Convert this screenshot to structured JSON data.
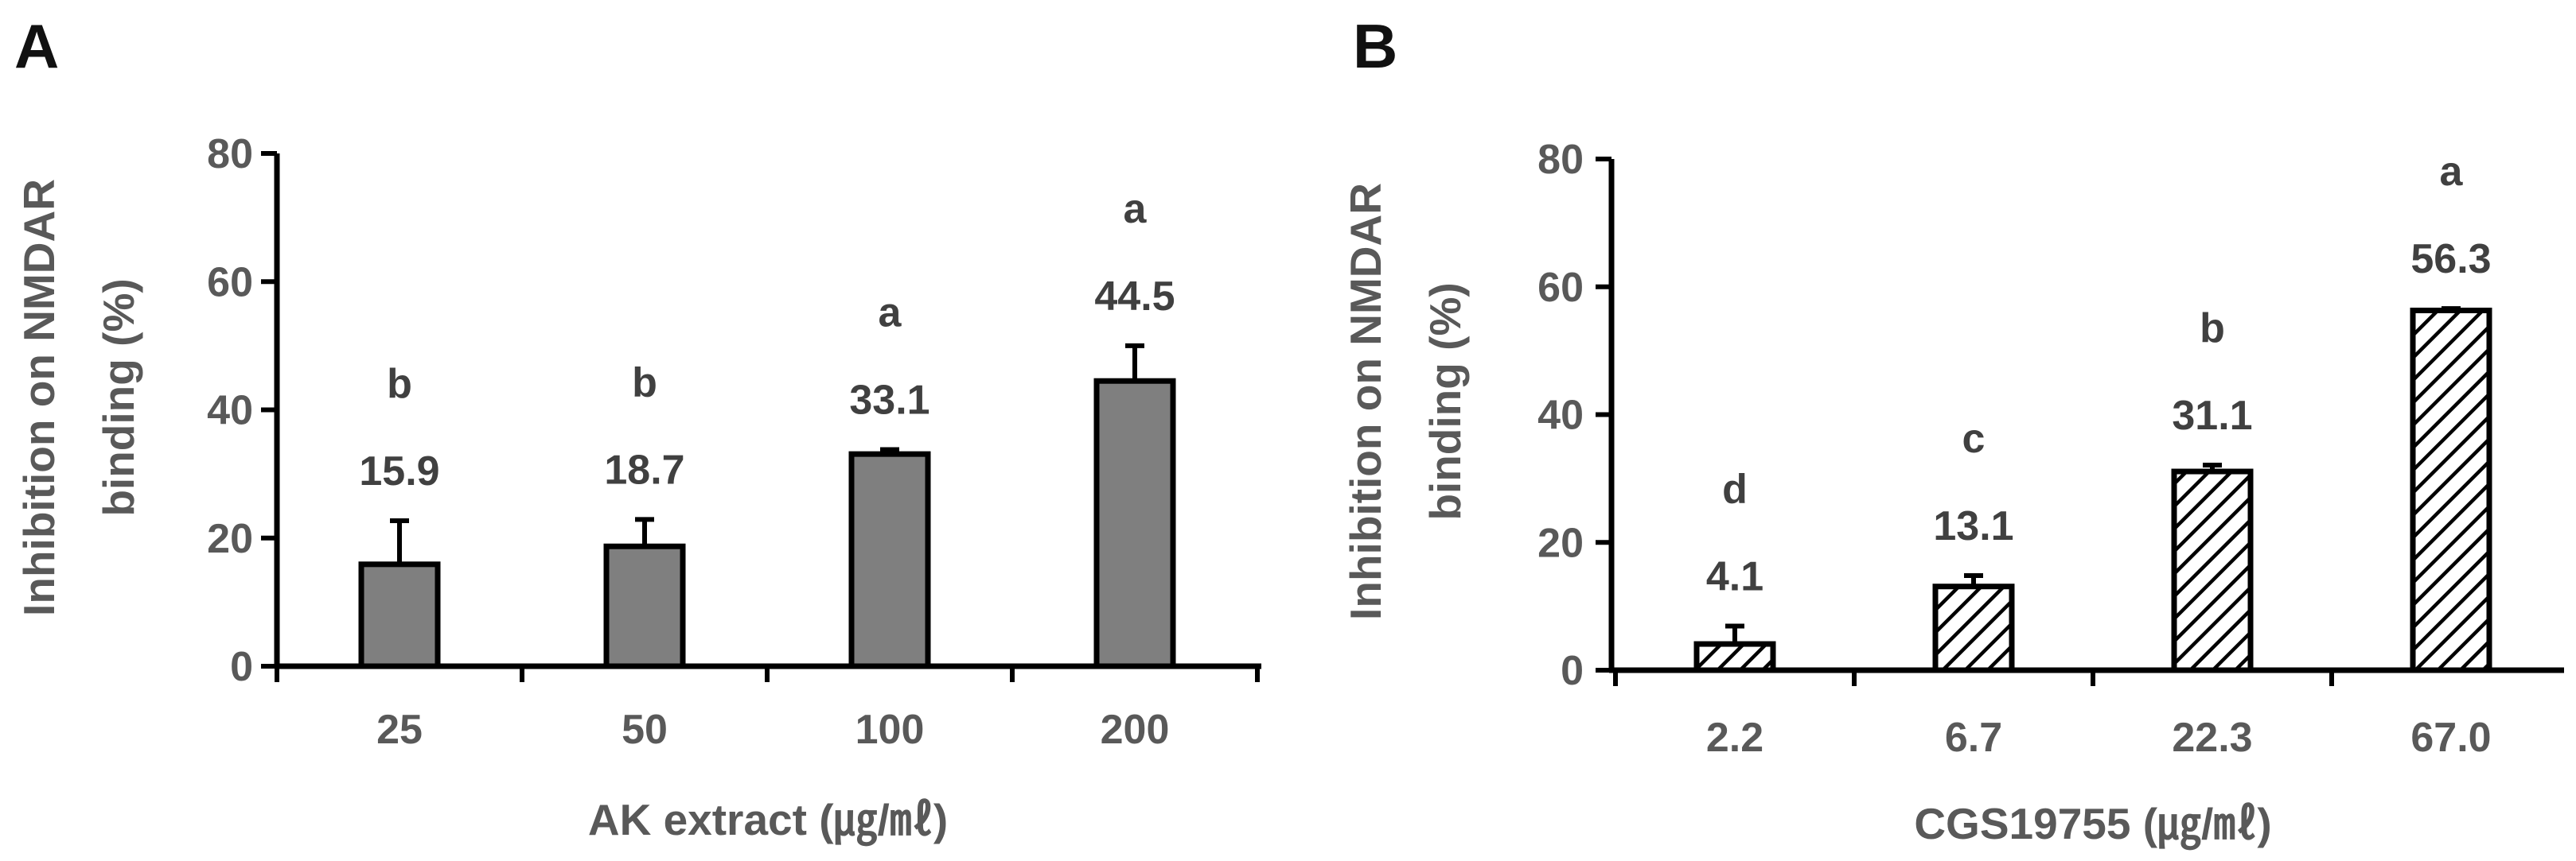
{
  "chart_data": [
    {
      "panel": "A",
      "type": "bar",
      "title": "",
      "xlabel": "AK extract (㎍/㎖)",
      "ylabel": "Inhibition on NMDAR binding (%)",
      "ylabel_lines": [
        "Inhibition on NMDAR",
        "binding (%)"
      ],
      "ylim": [
        0,
        80
      ],
      "yticks": [
        0,
        20,
        40,
        60,
        80
      ],
      "categories": [
        "25",
        "50",
        "100",
        "200"
      ],
      "values": [
        15.9,
        18.7,
        33.1,
        44.5
      ],
      "value_labels": [
        "15.9",
        "18.7",
        "33.1",
        "44.5"
      ],
      "errors": [
        6.8,
        4.2,
        0.7,
        5.5
      ],
      "significance": [
        "b",
        "b",
        "a",
        "a"
      ],
      "fill": "solid",
      "bar_color": "#7f7f7f"
    },
    {
      "panel": "B",
      "type": "bar",
      "title": "",
      "xlabel": "CGS19755 (㎍/㎖)",
      "ylabel": "Inhibition on NMDAR binding (%)",
      "ylabel_lines": [
        "Inhibition on NMDAR",
        "binding (%)"
      ],
      "ylim": [
        0,
        80
      ],
      "yticks": [
        0,
        20,
        40,
        60,
        80
      ],
      "categories": [
        "2.2",
        "6.7",
        "22.3",
        "67.0"
      ],
      "values": [
        4.1,
        13.1,
        31.1,
        56.3
      ],
      "value_labels": [
        "4.1",
        "13.1",
        "31.1",
        "56.3"
      ],
      "errors": [
        2.8,
        1.7,
        1.0,
        0.3
      ],
      "significance": [
        "d",
        "c",
        "b",
        "a"
      ],
      "fill": "hatch",
      "bar_color": "#000000"
    }
  ]
}
